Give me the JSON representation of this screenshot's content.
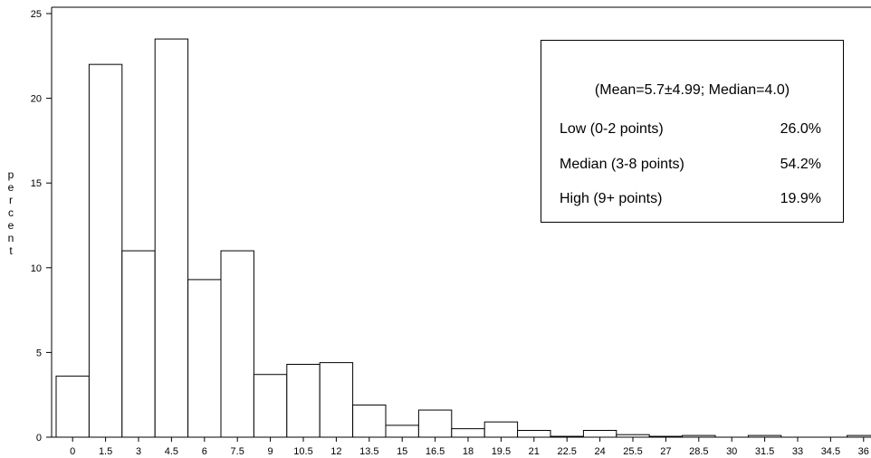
{
  "chart_data": {
    "type": "bar",
    "ylabel": "percent",
    "xlabel": "",
    "ylim": [
      0,
      25
    ],
    "yticks": [
      0,
      5,
      10,
      15,
      20,
      25
    ],
    "bin_width": 1.5,
    "categories": [
      "0",
      "1.5",
      "3",
      "4.5",
      "6",
      "7.5",
      "9",
      "10.5",
      "12",
      "13.5",
      "15",
      "16.5",
      "18",
      "19.5",
      "21",
      "22.5",
      "24",
      "25.5",
      "27",
      "28.5",
      "30",
      "31.5",
      "33",
      "34.5",
      "36"
    ],
    "values": [
      3.6,
      22.0,
      11.0,
      23.5,
      9.3,
      11.0,
      3.7,
      4.3,
      4.4,
      1.9,
      0.7,
      1.6,
      0.5,
      0.9,
      0.4,
      0.05,
      0.4,
      0.15,
      0.05,
      0.1,
      0.0,
      0.1,
      0.0,
      0.0,
      0.1
    ],
    "grid": false,
    "bar_color": "#ffffff",
    "edge_color": "#000000"
  },
  "legend": {
    "title": "(Mean=5.7±4.99; Median=4.0)",
    "rows": [
      {
        "label": "Low (0-2 points)",
        "value": "26.0%"
      },
      {
        "label": "Median (3-8 points)",
        "value": "54.2%"
      },
      {
        "label": "High (9+ points)",
        "value": "19.9%"
      }
    ]
  }
}
